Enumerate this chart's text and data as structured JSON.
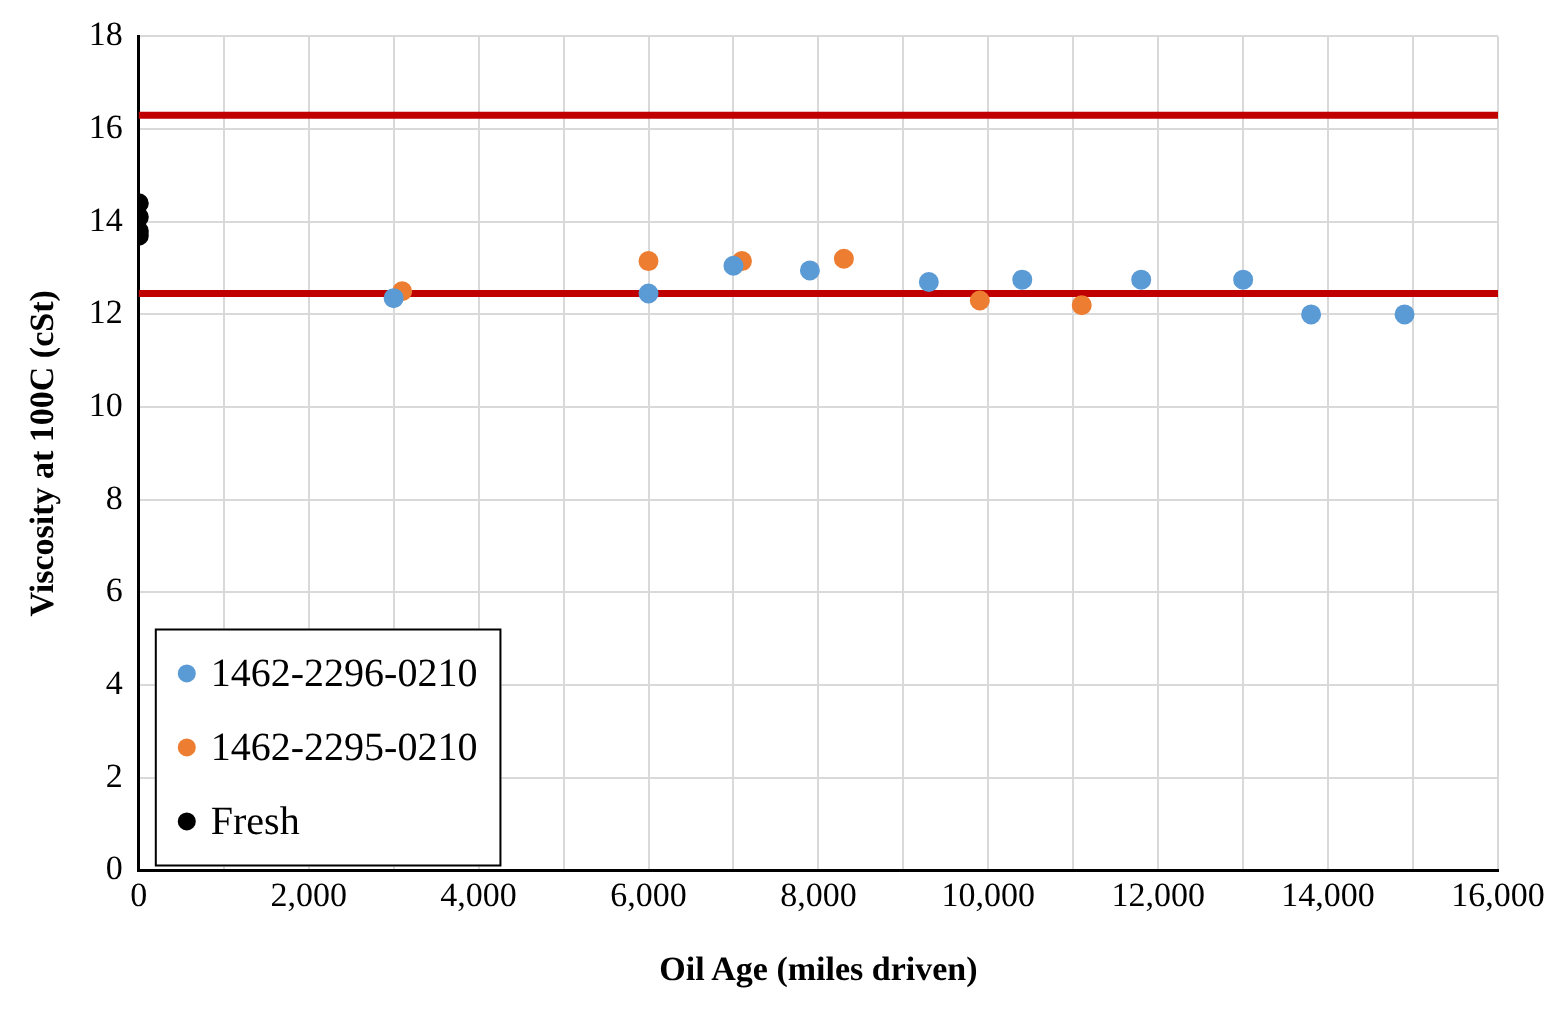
{
  "chart_data": {
    "type": "scatter",
    "xlabel": "Oil Age (miles driven)",
    "ylabel": "Viscosity at 100C (cSt)",
    "xlim": [
      0,
      16000
    ],
    "xticks": [
      {
        "value": 0,
        "label": "0"
      },
      {
        "value": 1000,
        "label": null
      },
      {
        "value": 2000,
        "label": "2,000"
      },
      {
        "value": 3000,
        "label": null
      },
      {
        "value": 4000,
        "label": "4,000"
      },
      {
        "value": 5000,
        "label": null
      },
      {
        "value": 6000,
        "label": "6,000"
      },
      {
        "value": 7000,
        "label": null
      },
      {
        "value": 8000,
        "label": "8,000"
      },
      {
        "value": 9000,
        "label": null
      },
      {
        "value": 10000,
        "label": "10,000"
      },
      {
        "value": 11000,
        "label": null
      },
      {
        "value": 12000,
        "label": "12,000"
      },
      {
        "value": 13000,
        "label": null
      },
      {
        "value": 14000,
        "label": "14,000"
      },
      {
        "value": 15000,
        "label": null
      },
      {
        "value": 16000,
        "label": "16,000"
      }
    ],
    "ylim": [
      0,
      18
    ],
    "yticks": [
      0,
      2,
      4,
      6,
      8,
      10,
      12,
      14,
      16,
      18
    ],
    "grid": true,
    "legend": "bottom left",
    "marker": "circle",
    "series": [
      {
        "name": "1462-2296-0210",
        "color": "#5b9bd5",
        "x": [
          3000,
          6000,
          7000,
          7900,
          9300,
          10400,
          11800,
          13000,
          13800,
          14900
        ],
        "values": [
          12.35,
          12.45,
          13.05,
          12.95,
          12.7,
          12.75,
          12.75,
          12.75,
          12.0,
          12.0
        ]
      },
      {
        "name": "1462-2295-0210",
        "color": "#ed7d31",
        "x": [
          3100,
          6000,
          7100,
          8300,
          9900,
          11100
        ],
        "values": [
          12.5,
          13.15,
          13.15,
          13.2,
          12.3,
          12.2
        ]
      },
      {
        "name": "Fresh",
        "color": "#000000",
        "x": [
          0,
          0,
          0,
          0
        ],
        "values": [
          14.4,
          14.1,
          13.8,
          13.7
        ]
      }
    ],
    "ref_lines": [
      {
        "axis": "y",
        "value": 16.3,
        "color": "#c00000"
      },
      {
        "axis": "y",
        "value": 12.45,
        "color": "#c00000"
      }
    ]
  }
}
